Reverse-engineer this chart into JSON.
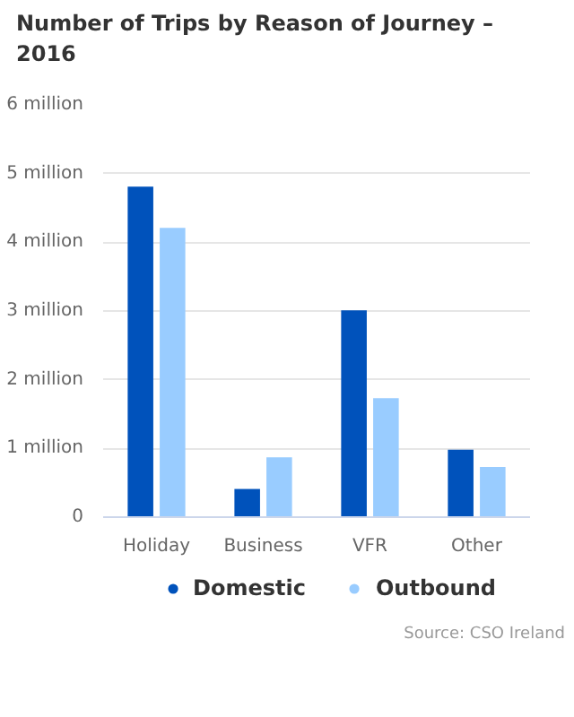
{
  "chart_data": {
    "type": "bar",
    "title": "Number of Trips by Reason of Journey – 2016",
    "categories": [
      "Holiday",
      "Business",
      "VFR",
      "Other"
    ],
    "series": [
      {
        "name": "Domestic",
        "color": "#0052bb",
        "values": [
          4.81,
          0.41,
          3.01,
          0.98
        ]
      },
      {
        "name": "Outbound",
        "color": "#99ccff",
        "values": [
          4.21,
          0.87,
          1.73,
          0.73
        ]
      }
    ],
    "ylim": [
      0,
      6
    ],
    "yticks": [
      {
        "value": 0,
        "label": "0"
      },
      {
        "value": 1,
        "label": "1 million"
      },
      {
        "value": 2,
        "label": "2 million"
      },
      {
        "value": 3,
        "label": "3 million"
      },
      {
        "value": 4,
        "label": "4 million"
      },
      {
        "value": 5,
        "label": "5 million"
      },
      {
        "value": 6,
        "label": "6 million"
      }
    ],
    "grid": "y",
    "legend": "bottom",
    "annotations": [
      "Source: CSO Ireland"
    ]
  }
}
